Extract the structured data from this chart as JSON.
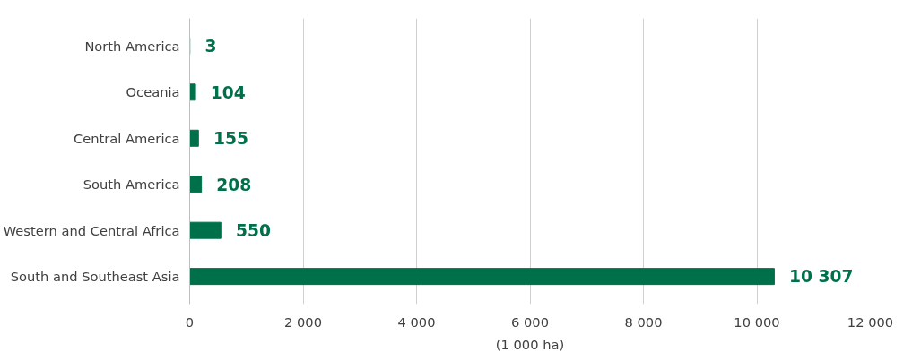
{
  "chart_data": {
    "type": "bar",
    "orientation": "horizontal",
    "categories": [
      "North America",
      "Oceania",
      "Central America",
      "South America",
      "Western and Central Africa",
      "South and Southeast Asia"
    ],
    "values": [
      3,
      104,
      155,
      208,
      550,
      10307
    ],
    "value_labels": [
      "3",
      "104",
      "155",
      "208",
      "550",
      "10 307"
    ],
    "color": "#00704a",
    "xlabel": "(1 000 ha)",
    "xlim": [
      0,
      12000
    ],
    "xticks": [
      0,
      {
        "value": 2000,
        "label": "2 000"
      },
      {
        "value": 4000,
        "label": "4 000"
      },
      {
        "value": 6000,
        "label": "6 000"
      },
      {
        "value": 8000,
        "label": "8 000"
      },
      {
        "value": 10000,
        "label": "10 000"
      },
      {
        "value": 12000,
        "label": "12 000"
      }
    ],
    "grid": "x"
  }
}
